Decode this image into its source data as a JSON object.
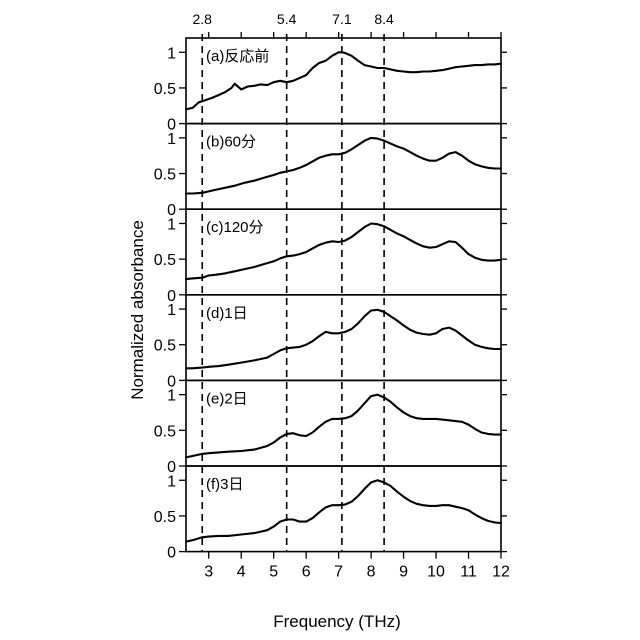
{
  "chart_data": {
    "type": "line",
    "xlabel": "Frequency (THz)",
    "ylabel": "Normalized absorbance",
    "xlim": [
      2.3,
      12
    ],
    "ylim": [
      0,
      1.2
    ],
    "x_ticks": [
      3,
      4,
      5,
      6,
      7,
      8,
      9,
      10,
      11,
      12
    ],
    "y_ticks": [
      0,
      0.5,
      1
    ],
    "y_tick_labels": [
      "0",
      "0.5",
      "1"
    ],
    "grid": false,
    "reference_lines": [
      {
        "x": 2.8,
        "label": "2.8"
      },
      {
        "x": 5.4,
        "label": "5.4"
      },
      {
        "x": 7.1,
        "label": "7.1"
      },
      {
        "x": 8.4,
        "label": "8.4"
      }
    ],
    "panels": [
      {
        "label": "(a)反応前",
        "x": [
          2.3,
          2.5,
          2.7,
          2.9,
          3.1,
          3.3,
          3.5,
          3.7,
          3.8,
          4.0,
          4.2,
          4.4,
          4.6,
          4.8,
          5.0,
          5.2,
          5.4,
          5.6,
          5.8,
          6.0,
          6.2,
          6.4,
          6.6,
          6.8,
          7.0,
          7.1,
          7.2,
          7.4,
          7.6,
          7.8,
          8.0,
          8.2,
          8.4,
          8.6,
          8.8,
          9.0,
          9.2,
          9.4,
          9.6,
          9.8,
          10.0,
          10.2,
          10.4,
          10.6,
          10.8,
          11.0,
          11.2,
          11.4,
          11.6,
          11.8,
          12.0
        ],
        "y": [
          0.2,
          0.22,
          0.3,
          0.33,
          0.36,
          0.4,
          0.44,
          0.5,
          0.56,
          0.48,
          0.52,
          0.53,
          0.55,
          0.54,
          0.58,
          0.6,
          0.58,
          0.6,
          0.64,
          0.68,
          0.78,
          0.85,
          0.88,
          0.95,
          1.0,
          1.0,
          0.99,
          0.95,
          0.88,
          0.82,
          0.8,
          0.78,
          0.78,
          0.76,
          0.74,
          0.73,
          0.72,
          0.72,
          0.73,
          0.73,
          0.74,
          0.75,
          0.77,
          0.79,
          0.8,
          0.81,
          0.82,
          0.82,
          0.83,
          0.83,
          0.84
        ]
      },
      {
        "label": "(b)60分",
        "x": [
          2.3,
          2.5,
          2.8,
          3.0,
          3.2,
          3.5,
          3.8,
          4.1,
          4.4,
          4.7,
          5.0,
          5.2,
          5.4,
          5.6,
          5.8,
          6.0,
          6.2,
          6.4,
          6.6,
          6.8,
          7.0,
          7.2,
          7.4,
          7.6,
          7.8,
          8.0,
          8.2,
          8.4,
          8.6,
          8.8,
          9.0,
          9.2,
          9.4,
          9.6,
          9.8,
          10.0,
          10.2,
          10.4,
          10.6,
          10.8,
          11.0,
          11.2,
          11.4,
          11.6,
          11.8,
          12.0
        ],
        "y": [
          0.22,
          0.22,
          0.23,
          0.25,
          0.27,
          0.3,
          0.33,
          0.37,
          0.4,
          0.44,
          0.48,
          0.51,
          0.53,
          0.55,
          0.58,
          0.62,
          0.67,
          0.72,
          0.75,
          0.77,
          0.77,
          0.79,
          0.84,
          0.9,
          0.96,
          1.0,
          0.99,
          0.96,
          0.92,
          0.88,
          0.85,
          0.8,
          0.75,
          0.71,
          0.68,
          0.68,
          0.72,
          0.78,
          0.8,
          0.75,
          0.68,
          0.63,
          0.6,
          0.58,
          0.57,
          0.57
        ]
      },
      {
        "label": "(c)120分",
        "x": [
          2.3,
          2.5,
          2.8,
          3.0,
          3.2,
          3.5,
          3.8,
          4.1,
          4.4,
          4.7,
          5.0,
          5.2,
          5.4,
          5.6,
          5.8,
          6.0,
          6.2,
          6.4,
          6.6,
          6.8,
          7.0,
          7.2,
          7.4,
          7.6,
          7.8,
          8.0,
          8.2,
          8.4,
          8.6,
          8.8,
          9.0,
          9.2,
          9.4,
          9.6,
          9.8,
          10.0,
          10.2,
          10.4,
          10.6,
          10.8,
          11.0,
          11.2,
          11.4,
          11.6,
          11.8,
          12.0
        ],
        "y": [
          0.22,
          0.23,
          0.24,
          0.27,
          0.28,
          0.3,
          0.33,
          0.36,
          0.39,
          0.43,
          0.47,
          0.51,
          0.54,
          0.55,
          0.57,
          0.6,
          0.65,
          0.7,
          0.73,
          0.75,
          0.74,
          0.76,
          0.81,
          0.88,
          0.95,
          1.0,
          0.99,
          0.96,
          0.91,
          0.86,
          0.82,
          0.77,
          0.72,
          0.68,
          0.66,
          0.67,
          0.71,
          0.75,
          0.74,
          0.66,
          0.57,
          0.52,
          0.49,
          0.48,
          0.48,
          0.49
        ]
      },
      {
        "label": "(d)1日",
        "x": [
          2.3,
          2.5,
          2.8,
          3.0,
          3.3,
          3.6,
          4.0,
          4.4,
          4.8,
          5.0,
          5.2,
          5.4,
          5.6,
          5.8,
          6.0,
          6.2,
          6.4,
          6.6,
          6.8,
          7.0,
          7.2,
          7.4,
          7.6,
          7.8,
          8.0,
          8.2,
          8.4,
          8.6,
          8.8,
          9.0,
          9.2,
          9.4,
          9.6,
          9.8,
          10.0,
          10.2,
          10.4,
          10.6,
          10.8,
          11.0,
          11.2,
          11.4,
          11.6,
          11.8,
          12.0
        ],
        "y": [
          0.17,
          0.17,
          0.18,
          0.19,
          0.2,
          0.22,
          0.25,
          0.28,
          0.32,
          0.37,
          0.42,
          0.45,
          0.46,
          0.47,
          0.5,
          0.55,
          0.62,
          0.68,
          0.66,
          0.66,
          0.68,
          0.72,
          0.8,
          0.9,
          0.98,
          0.99,
          0.96,
          0.9,
          0.84,
          0.77,
          0.71,
          0.67,
          0.65,
          0.64,
          0.66,
          0.72,
          0.74,
          0.7,
          0.63,
          0.56,
          0.5,
          0.47,
          0.45,
          0.44,
          0.44
        ]
      },
      {
        "label": "(e)2日",
        "x": [
          2.3,
          2.5,
          2.8,
          3.0,
          3.3,
          3.6,
          4.0,
          4.4,
          4.8,
          5.0,
          5.2,
          5.4,
          5.6,
          5.8,
          6.0,
          6.2,
          6.4,
          6.6,
          6.8,
          7.0,
          7.2,
          7.4,
          7.6,
          7.8,
          8.0,
          8.2,
          8.4,
          8.6,
          8.8,
          9.0,
          9.2,
          9.4,
          9.6,
          9.8,
          10.0,
          10.2,
          10.4,
          10.6,
          10.8,
          11.0,
          11.2,
          11.4,
          11.6,
          11.8,
          12.0
        ],
        "y": [
          0.12,
          0.14,
          0.17,
          0.18,
          0.19,
          0.2,
          0.21,
          0.23,
          0.28,
          0.33,
          0.4,
          0.45,
          0.46,
          0.43,
          0.42,
          0.47,
          0.55,
          0.62,
          0.66,
          0.66,
          0.67,
          0.7,
          0.78,
          0.88,
          0.98,
          1.0,
          0.96,
          0.9,
          0.82,
          0.75,
          0.7,
          0.67,
          0.66,
          0.66,
          0.66,
          0.65,
          0.64,
          0.63,
          0.62,
          0.58,
          0.52,
          0.47,
          0.45,
          0.44,
          0.44
        ]
      },
      {
        "label": "(f)3日",
        "x": [
          2.3,
          2.5,
          2.8,
          3.0,
          3.3,
          3.6,
          4.0,
          4.4,
          4.8,
          5.0,
          5.2,
          5.4,
          5.6,
          5.8,
          6.0,
          6.2,
          6.4,
          6.6,
          6.8,
          7.0,
          7.2,
          7.4,
          7.6,
          7.8,
          8.0,
          8.2,
          8.4,
          8.6,
          8.8,
          9.0,
          9.2,
          9.4,
          9.6,
          9.8,
          10.0,
          10.2,
          10.4,
          10.6,
          10.8,
          11.0,
          11.2,
          11.4,
          11.6,
          11.8,
          12.0
        ],
        "y": [
          0.14,
          0.16,
          0.2,
          0.21,
          0.22,
          0.22,
          0.24,
          0.26,
          0.3,
          0.35,
          0.42,
          0.45,
          0.45,
          0.42,
          0.42,
          0.47,
          0.55,
          0.62,
          0.65,
          0.65,
          0.66,
          0.7,
          0.78,
          0.88,
          0.97,
          1.0,
          0.97,
          0.92,
          0.84,
          0.77,
          0.71,
          0.67,
          0.65,
          0.64,
          0.64,
          0.65,
          0.65,
          0.63,
          0.61,
          0.58,
          0.52,
          0.47,
          0.43,
          0.41,
          0.4
        ]
      }
    ]
  }
}
